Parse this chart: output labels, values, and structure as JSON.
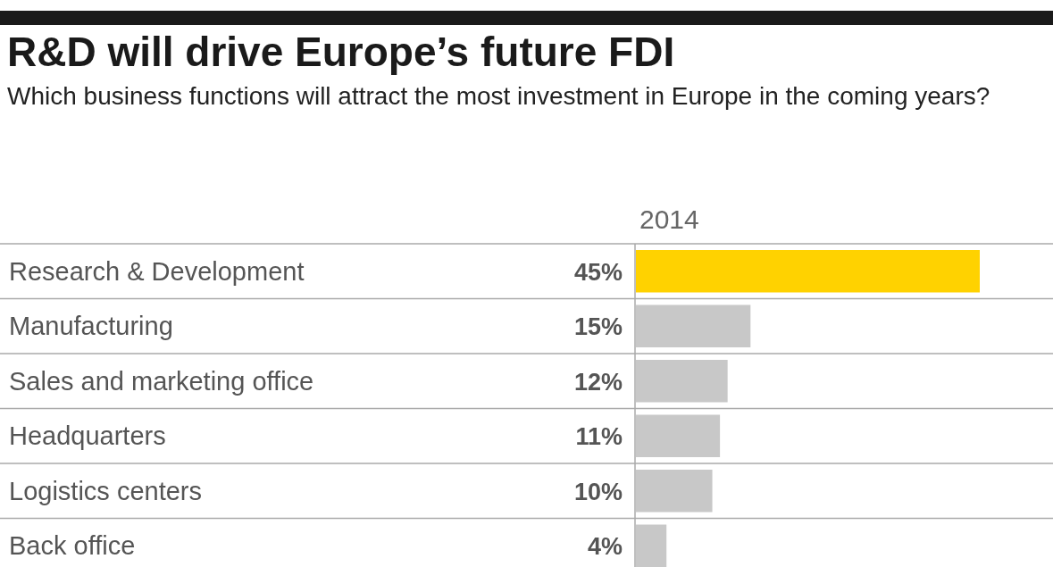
{
  "chart_data": {
    "type": "bar",
    "orientation": "horizontal",
    "title": "R&D will drive Europe’s future FDI",
    "subtitle": "Which business functions will attract the most investment in Europe in the coming years?",
    "categories": [
      "Research & Development",
      "Manufacturing",
      "Sales and marketing office",
      "Headquarters",
      "Logistics centers",
      "Back office"
    ],
    "series": [
      {
        "name": "2014",
        "colors": [
          "#ffd200",
          "#c8c8c8",
          "#c8c8c8",
          "#c8c8c8",
          "#c8c8c8",
          "#c8c8c8"
        ],
        "values": [
          45,
          15,
          12,
          11,
          10,
          4
        ],
        "value_labels": [
          "45%",
          "15%",
          "12%",
          "11%",
          "10%",
          "4%"
        ]
      }
    ],
    "grid": "y",
    "tick_labels": "y"
  }
}
